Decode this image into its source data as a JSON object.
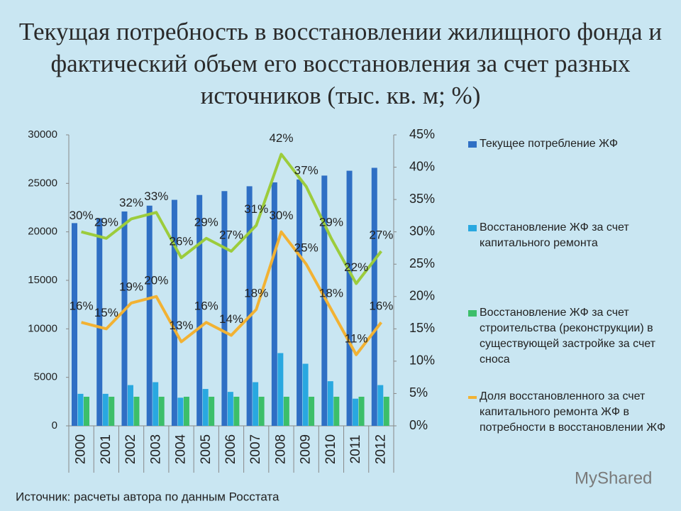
{
  "chart_data": {
    "type": "bar",
    "title": "Текущая потребность в восстановлении жилищного фонда и фактический объем его восстановления за счет разных источников (тыс. кв. м; %)",
    "categories": [
      "2000",
      "2001",
      "2002",
      "2003",
      "2004",
      "2005",
      "2006",
      "2007",
      "2008",
      "2009",
      "2010",
      "2011",
      "2012"
    ],
    "series": [
      {
        "name": "Текущее потребление ЖФ",
        "type": "bar",
        "color": "#2f6fc4",
        "values": [
          20900,
          21400,
          22100,
          22700,
          23300,
          23800,
          24200,
          24700,
          25100,
          25400,
          25800,
          26300,
          26600
        ]
      },
      {
        "name": "Восстановление ЖФ за счет капитального ремонта",
        "type": "bar",
        "color": "#29a8e0",
        "values": [
          3300,
          3300,
          4200,
          4500,
          2900,
          3800,
          3500,
          4500,
          7500,
          6400,
          4600,
          2800,
          4200
        ]
      },
      {
        "name": "Восстановление ЖФ за счет строительства (реконструкции) в существующей застройке за счет сноса",
        "type": "bar",
        "color": "#3cbf6a",
        "values": [
          3000,
          3000,
          3000,
          3000,
          3000,
          3000,
          3000,
          3000,
          3000,
          3000,
          3000,
          3000,
          3000
        ]
      },
      {
        "type": "line",
        "axis": "y2",
        "color": "#9ccc3c",
        "values": [
          30,
          29,
          32,
          33,
          26,
          29,
          27,
          31,
          42,
          37,
          29,
          22,
          27
        ],
        "value_labels": [
          "30%",
          "29%",
          "32%",
          "33%",
          "26%",
          "29%",
          "27%",
          "31%",
          "42%",
          "37%",
          "29%",
          "22%",
          "27%"
        ]
      },
      {
        "name": "Доля восстановленного за счет капитального ремонта ЖФ в потребности в восстановлении ЖФ",
        "type": "line",
        "axis": "y2",
        "color": "#f2b233",
        "values": [
          16,
          15,
          19,
          20,
          13,
          16,
          14,
          18,
          30,
          25,
          18,
          11,
          16
        ],
        "value_labels": [
          "16%",
          "15%",
          "19%",
          "20%",
          "13%",
          "16%",
          "14%",
          "18%",
          "30%",
          "25%",
          "18%",
          "11%",
          "16%"
        ]
      }
    ],
    "ylim": [
      0,
      30000
    ],
    "yticks": [
      0,
      5000,
      10000,
      15000,
      20000,
      25000,
      30000
    ],
    "y2lim": [
      0,
      45
    ],
    "y2ticks": [
      {
        "value": 0,
        "label": "0%"
      },
      {
        "value": 5,
        "label": "5%"
      },
      {
        "value": 10,
        "label": "10%"
      },
      {
        "value": 15,
        "label": "15%"
      },
      {
        "value": 20,
        "label": "20%"
      },
      {
        "value": 25,
        "label": "25%"
      },
      {
        "value": 30,
        "label": "30%"
      },
      {
        "value": 35,
        "label": "35%"
      },
      {
        "value": 40,
        "label": "40%"
      },
      {
        "value": 45,
        "label": "45%"
      }
    ],
    "source": "Источник: расчеты автора по данным Росстата",
    "watermark": "MyShared"
  }
}
